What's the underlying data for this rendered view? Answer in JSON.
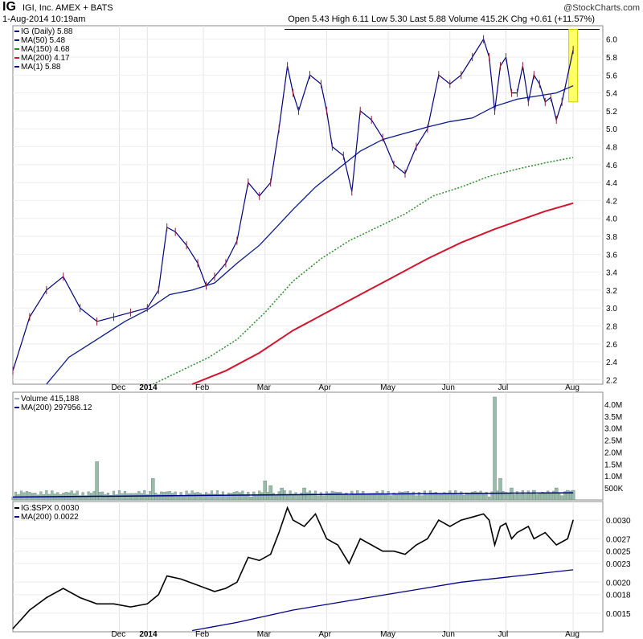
{
  "header": {
    "ticker": "IG",
    "company": "IGI, Inc.  AMEX + BATS",
    "datetime": "1-Aug-2014 10:19am",
    "watermark": "@StockCharts.com",
    "quote": "Open 5.43  High 6.11  Low 5.30  Last 5.88  Volume 415.2K  Chg +0.61 (+11.57%)",
    "quote_up_icon": "up-arrow-icon"
  },
  "colors": {
    "price": "#000080",
    "ma50": "#0a1a8a",
    "ma150": "#2e8b2e",
    "ma200": "#d2142d",
    "ma1": "#000080",
    "volume_bar": "#99bbaa",
    "volume_ma": "#00008b",
    "ratio": "#000000",
    "ratio_ma": "#00008b",
    "highlight": "#ffff66"
  },
  "chart_data": [
    {
      "type": "line",
      "panel": "price",
      "title": "IG (Daily) 5.88",
      "legend": [
        {
          "label": "IG (Daily) 5.88",
          "key": "price"
        },
        {
          "label": "MA(50) 5.48",
          "key": "ma50"
        },
        {
          "label": "MA(150) 4.68",
          "key": "ma150"
        },
        {
          "label": "MA(200) 4.17",
          "key": "ma200"
        },
        {
          "label": "MA(1) 5.88",
          "key": "ma1"
        }
      ],
      "ylim": [
        2.15,
        6.15
      ],
      "yticks": [
        "2.2",
        "2.4",
        "2.6",
        "2.8",
        "3.0",
        "3.2",
        "3.4",
        "3.6",
        "3.8",
        "4.0",
        "4.2",
        "4.4",
        "4.6",
        "4.8",
        "5.0",
        "5.2",
        "5.4",
        "5.6",
        "5.8",
        "6.0"
      ],
      "xticks": [
        {
          "label": "Dec",
          "t": 0.19,
          "bold": false
        },
        {
          "label": "2014",
          "t": 0.24,
          "bold": true
        },
        {
          "label": "Feb",
          "t": 0.34,
          "bold": false
        },
        {
          "label": "Mar",
          "t": 0.45,
          "bold": false
        },
        {
          "label": "Apr",
          "t": 0.56,
          "bold": false
        },
        {
          "label": "May",
          "t": 0.67,
          "bold": false
        },
        {
          "label": "Jun",
          "t": 0.78,
          "bold": false
        },
        {
          "label": "Jul",
          "t": 0.88,
          "bold": false
        },
        {
          "label": "Aug",
          "t": 1.0,
          "bold": false
        }
      ],
      "x_range": [
        0,
        1.05
      ],
      "price": [
        [
          0.0,
          2.3
        ],
        [
          0.03,
          2.9
        ],
        [
          0.06,
          3.2
        ],
        [
          0.09,
          3.35
        ],
        [
          0.12,
          3.0
        ],
        [
          0.15,
          2.85
        ],
        [
          0.18,
          2.9
        ],
        [
          0.21,
          2.95
        ],
        [
          0.24,
          3.0
        ],
        [
          0.26,
          3.2
        ],
        [
          0.275,
          3.9
        ],
        [
          0.29,
          3.85
        ],
        [
          0.31,
          3.7
        ],
        [
          0.33,
          3.5
        ],
        [
          0.345,
          3.25
        ],
        [
          0.36,
          3.35
        ],
        [
          0.38,
          3.5
        ],
        [
          0.4,
          3.75
        ],
        [
          0.42,
          4.4
        ],
        [
          0.44,
          4.25
        ],
        [
          0.46,
          4.4
        ],
        [
          0.475,
          5.0
        ],
        [
          0.49,
          5.7
        ],
        [
          0.5,
          5.4
        ],
        [
          0.51,
          5.2
        ],
        [
          0.53,
          5.6
        ],
        [
          0.55,
          5.5
        ],
        [
          0.56,
          5.2
        ],
        [
          0.57,
          4.8
        ],
        [
          0.59,
          4.7
        ],
        [
          0.605,
          4.3
        ],
        [
          0.62,
          5.2
        ],
        [
          0.64,
          5.1
        ],
        [
          0.66,
          4.9
        ],
        [
          0.68,
          4.6
        ],
        [
          0.7,
          4.5
        ],
        [
          0.72,
          4.8
        ],
        [
          0.74,
          5.0
        ],
        [
          0.76,
          5.6
        ],
        [
          0.78,
          5.5
        ],
        [
          0.8,
          5.6
        ],
        [
          0.82,
          5.8
        ],
        [
          0.84,
          6.0
        ],
        [
          0.85,
          5.8
        ],
        [
          0.86,
          5.2
        ],
        [
          0.87,
          5.7
        ],
        [
          0.88,
          5.8
        ],
        [
          0.89,
          5.4
        ],
        [
          0.9,
          5.4
        ],
        [
          0.91,
          5.7
        ],
        [
          0.92,
          5.3
        ],
        [
          0.93,
          5.6
        ],
        [
          0.94,
          5.5
        ],
        [
          0.95,
          5.3
        ],
        [
          0.96,
          5.35
        ],
        [
          0.97,
          5.1
        ],
        [
          0.98,
          5.3
        ],
        [
          1.0,
          5.88
        ]
      ],
      "ma50": [
        [
          0.06,
          2.15
        ],
        [
          0.1,
          2.45
        ],
        [
          0.15,
          2.65
        ],
        [
          0.2,
          2.85
        ],
        [
          0.24,
          2.98
        ],
        [
          0.28,
          3.15
        ],
        [
          0.32,
          3.2
        ],
        [
          0.36,
          3.28
        ],
        [
          0.4,
          3.5
        ],
        [
          0.44,
          3.7
        ],
        [
          0.47,
          3.9
        ],
        [
          0.5,
          4.1
        ],
        [
          0.54,
          4.35
        ],
        [
          0.58,
          4.55
        ],
        [
          0.62,
          4.75
        ],
        [
          0.66,
          4.88
        ],
        [
          0.7,
          4.95
        ],
        [
          0.74,
          5.02
        ],
        [
          0.78,
          5.08
        ],
        [
          0.82,
          5.12
        ],
        [
          0.86,
          5.25
        ],
        [
          0.9,
          5.33
        ],
        [
          0.94,
          5.37
        ],
        [
          0.97,
          5.4
        ],
        [
          1.0,
          5.48
        ]
      ],
      "ma150": [
        [
          0.25,
          2.15
        ],
        [
          0.3,
          2.3
        ],
        [
          0.35,
          2.45
        ],
        [
          0.4,
          2.65
        ],
        [
          0.45,
          2.95
        ],
        [
          0.5,
          3.3
        ],
        [
          0.55,
          3.55
        ],
        [
          0.6,
          3.75
        ],
        [
          0.65,
          3.9
        ],
        [
          0.7,
          4.05
        ],
        [
          0.75,
          4.25
        ],
        [
          0.8,
          4.35
        ],
        [
          0.85,
          4.47
        ],
        [
          0.9,
          4.55
        ],
        [
          0.95,
          4.62
        ],
        [
          1.0,
          4.68
        ]
      ],
      "ma200": [
        [
          0.32,
          2.15
        ],
        [
          0.38,
          2.3
        ],
        [
          0.44,
          2.5
        ],
        [
          0.5,
          2.75
        ],
        [
          0.56,
          2.95
        ],
        [
          0.62,
          3.15
        ],
        [
          0.68,
          3.35
        ],
        [
          0.74,
          3.55
        ],
        [
          0.8,
          3.73
        ],
        [
          0.86,
          3.88
        ],
        [
          0.9,
          3.97
        ],
        [
          0.95,
          4.08
        ],
        [
          1.0,
          4.17
        ]
      ],
      "highlight_box": {
        "t0": 0.995,
        "t1": 1.005,
        "low": 5.3,
        "high": 6.11
      },
      "resistance": 6.11,
      "resistance_from": 0.485
    },
    {
      "type": "bar",
      "panel": "volume",
      "title": "Volume 415,188",
      "legend": [
        {
          "label": "Volume 415,188",
          "key": "volume_bar"
        },
        {
          "label": "MA(200) 297956.12",
          "key": "volume_ma"
        }
      ],
      "ylim": [
        0,
        4.5
      ],
      "yticks": [
        "500K",
        "1.0M",
        "1.5M",
        "2.0M",
        "2.5M",
        "3.0M",
        "3.5M",
        "4.0M"
      ],
      "spikes": [
        [
          0.15,
          1.6
        ],
        [
          0.25,
          0.9
        ],
        [
          0.45,
          0.8
        ],
        [
          0.46,
          0.6
        ],
        [
          0.48,
          0.5
        ],
        [
          0.52,
          0.5
        ],
        [
          0.86,
          4.3
        ],
        [
          0.87,
          0.9
        ],
        [
          0.89,
          0.5
        ],
        [
          0.93,
          0.4
        ],
        [
          0.97,
          0.5
        ],
        [
          0.99,
          0.4
        ],
        [
          1.0,
          0.4
        ]
      ],
      "ma": [
        [
          0.0,
          0.12
        ],
        [
          0.3,
          0.18
        ],
        [
          0.6,
          0.24
        ],
        [
          0.85,
          0.28
        ],
        [
          1.0,
          0.3
        ]
      ]
    },
    {
      "type": "line",
      "panel": "ratio",
      "title": "IG:$SPX 0.0030",
      "legend": [
        {
          "label": "IG:$SPX 0.0030",
          "key": "ratio"
        },
        {
          "label": "MA(200) 0.0022",
          "key": "ratio_ma"
        }
      ],
      "ylim": [
        0.0012,
        0.0033
      ],
      "yticks": [
        "0.0015",
        "0.0018",
        "0.0020",
        "0.0023",
        "0.0025",
        "0.0027",
        "0.0030"
      ],
      "values": [
        [
          0.0,
          0.00125
        ],
        [
          0.03,
          0.00155
        ],
        [
          0.06,
          0.00175
        ],
        [
          0.09,
          0.0019
        ],
        [
          0.12,
          0.00175
        ],
        [
          0.15,
          0.00165
        ],
        [
          0.18,
          0.00165
        ],
        [
          0.21,
          0.0016
        ],
        [
          0.24,
          0.00165
        ],
        [
          0.26,
          0.0018
        ],
        [
          0.275,
          0.0021
        ],
        [
          0.3,
          0.00205
        ],
        [
          0.33,
          0.00195
        ],
        [
          0.345,
          0.0019
        ],
        [
          0.36,
          0.00185
        ],
        [
          0.38,
          0.0019
        ],
        [
          0.4,
          0.002
        ],
        [
          0.42,
          0.0024
        ],
        [
          0.44,
          0.00235
        ],
        [
          0.46,
          0.00245
        ],
        [
          0.475,
          0.0028
        ],
        [
          0.49,
          0.0032
        ],
        [
          0.5,
          0.003
        ],
        [
          0.52,
          0.0029
        ],
        [
          0.54,
          0.0031
        ],
        [
          0.56,
          0.0027
        ],
        [
          0.58,
          0.0026
        ],
        [
          0.6,
          0.0023
        ],
        [
          0.62,
          0.0027
        ],
        [
          0.64,
          0.0026
        ],
        [
          0.66,
          0.0025
        ],
        [
          0.68,
          0.0025
        ],
        [
          0.7,
          0.00245
        ],
        [
          0.72,
          0.0026
        ],
        [
          0.74,
          0.0027
        ],
        [
          0.76,
          0.003
        ],
        [
          0.78,
          0.0029
        ],
        [
          0.8,
          0.003
        ],
        [
          0.82,
          0.00305
        ],
        [
          0.84,
          0.0031
        ],
        [
          0.85,
          0.003
        ],
        [
          0.86,
          0.0026
        ],
        [
          0.87,
          0.0029
        ],
        [
          0.88,
          0.00295
        ],
        [
          0.89,
          0.0027
        ],
        [
          0.9,
          0.0028
        ],
        [
          0.92,
          0.0029
        ],
        [
          0.93,
          0.0027
        ],
        [
          0.95,
          0.0028
        ],
        [
          0.97,
          0.0026
        ],
        [
          0.99,
          0.0027
        ],
        [
          1.0,
          0.003
        ]
      ],
      "ma": [
        [
          0.32,
          0.00122
        ],
        [
          0.4,
          0.00135
        ],
        [
          0.5,
          0.00155
        ],
        [
          0.6,
          0.0017
        ],
        [
          0.7,
          0.00185
        ],
        [
          0.8,
          0.002
        ],
        [
          0.9,
          0.0021
        ],
        [
          1.0,
          0.0022
        ]
      ]
    }
  ]
}
